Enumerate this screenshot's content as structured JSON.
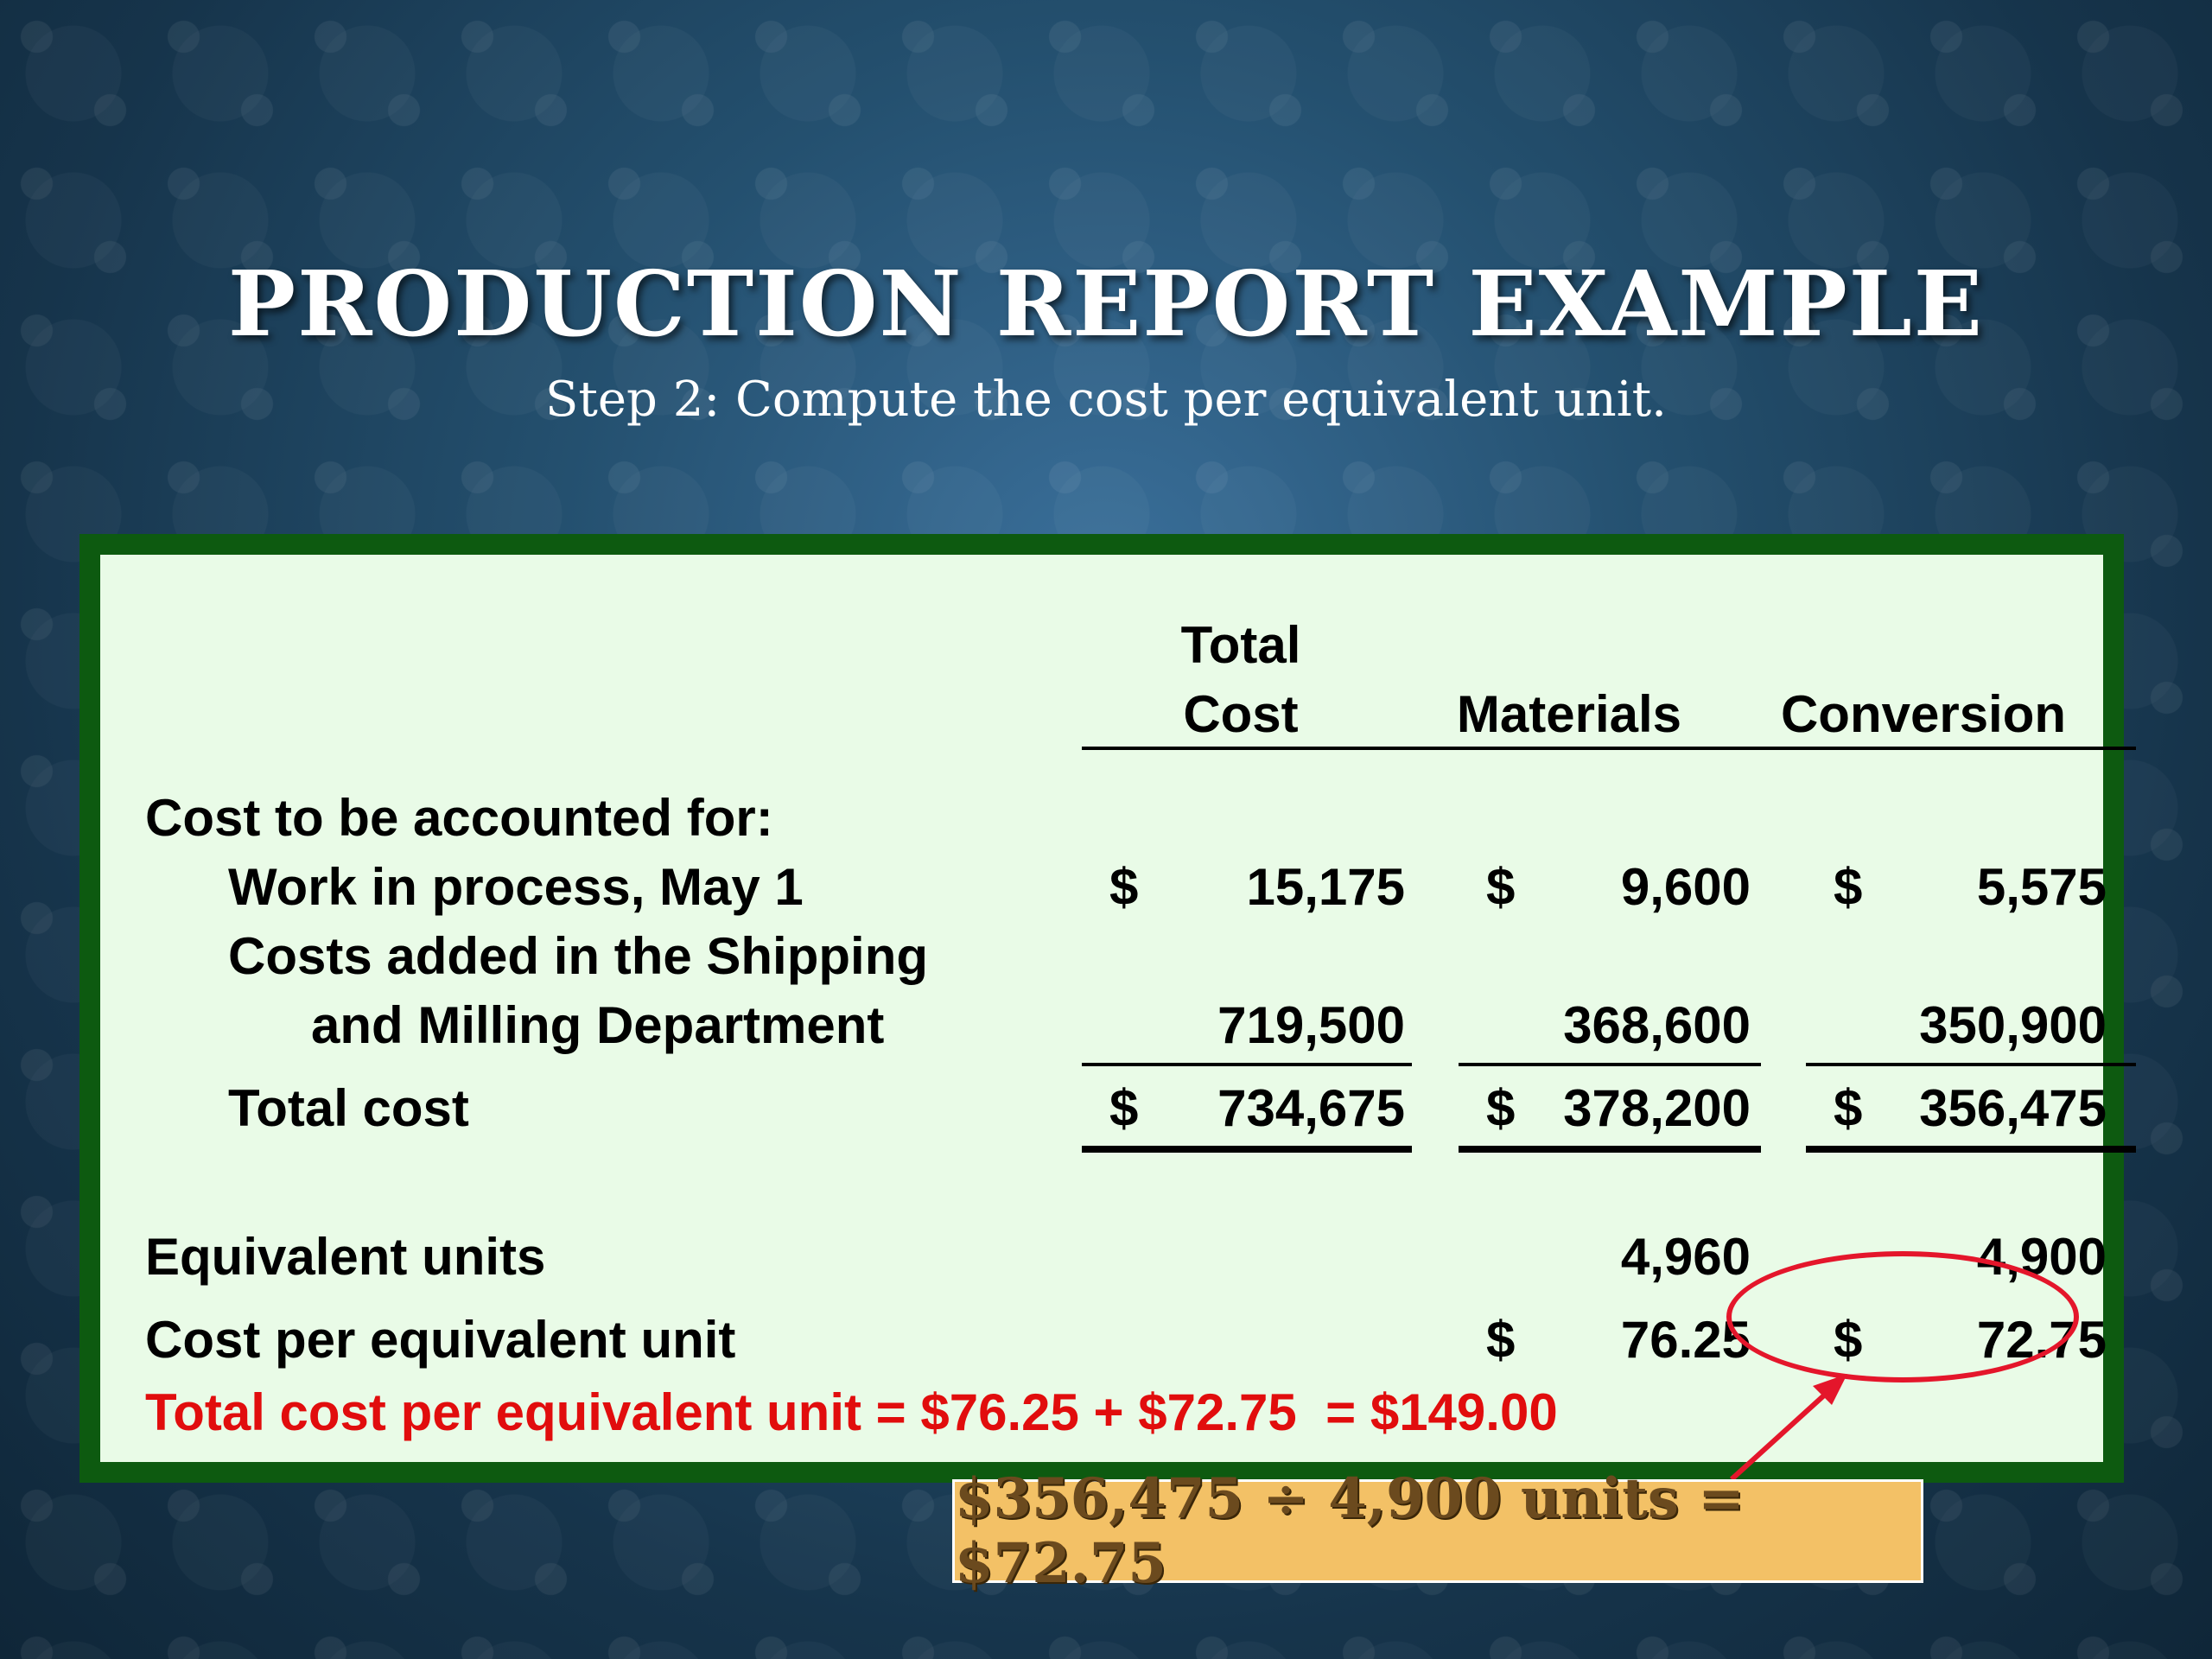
{
  "slide": {
    "title": "PRODUCTION REPORT EXAMPLE",
    "subtitle": "Step 2: Compute the cost per equivalent unit."
  },
  "table": {
    "headers": {
      "total_cost_line1": "Total",
      "total_cost_line2": "Cost",
      "materials": "Materials",
      "conversion": "Conversion"
    },
    "section_label": "Cost to be accounted for:",
    "currency_symbol": "$",
    "rows": {
      "wip": {
        "label": "Work in process, May 1",
        "total": "15,175",
        "materials": "9,600",
        "conversion": "5,575"
      },
      "added": {
        "label_line1": "Costs added in the Shipping",
        "label_line2": "and Milling Department",
        "total": "719,500",
        "materials": "368,600",
        "conversion": "350,900"
      },
      "total_cost": {
        "label": "Total cost",
        "total": "734,675",
        "materials": "378,200",
        "conversion": "356,475"
      },
      "equivalent_units": {
        "label": "Equivalent units",
        "materials": "4,960",
        "conversion": "4,900"
      },
      "cost_per_unit": {
        "label": "Cost per equivalent unit",
        "materials": "76.25",
        "conversion": "72.75"
      }
    },
    "total_per_unit_text": "Total cost per equivalent unit = $76.25 + $72.75  = $149.00"
  },
  "callout": {
    "text": "$356,475 ÷ 4,900 units = $72.75"
  },
  "colors": {
    "panel_border": "#0d5a10",
    "panel_fill": "#e9fbe7",
    "highlight_red": "#e10d0d",
    "callout_fill": "#f3c166"
  }
}
